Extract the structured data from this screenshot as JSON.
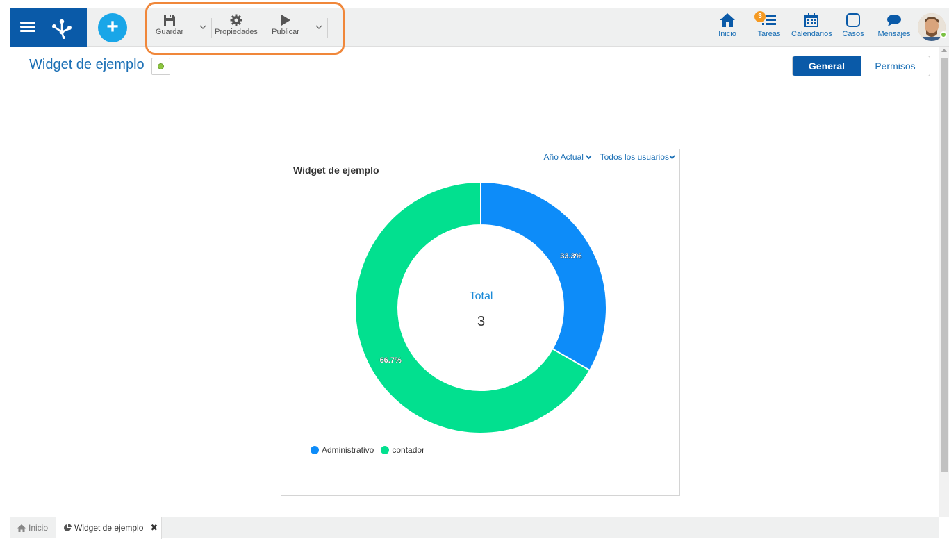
{
  "toolbar": {
    "save_label": "Guardar",
    "properties_label": "Propiedades",
    "publish_label": "Publicar"
  },
  "nav": {
    "home_label": "Inicio",
    "tasks_label": "Tareas",
    "tasks_badge": "3",
    "calendars_label": "Calendarios",
    "cases_label": "Casos",
    "messages_label": "Mensajes"
  },
  "page": {
    "title": "Widget de ejemplo"
  },
  "tabs": {
    "general": "General",
    "permissions": "Permisos"
  },
  "widget": {
    "title": "Widget de ejemplo",
    "filter_period": "Año Actual",
    "filter_users": "Todos los usuarios",
    "center_label": "Total",
    "center_value": "3"
  },
  "chart_data": {
    "type": "pie",
    "title": "Widget de ejemplo",
    "categories": [
      "Administrativo",
      "contador"
    ],
    "values": [
      33.3,
      66.7
    ],
    "labels": [
      "33.3%",
      "66.7%"
    ],
    "colors": [
      "#0d8cf9",
      "#02e08f"
    ],
    "legend": "bottom-left",
    "donut": true
  },
  "bottom_tabs": {
    "home": "Inicio",
    "widget": "Widget de ejemplo"
  },
  "colors": {
    "brand": "#0a5aa8",
    "accent": "#19a6e8",
    "highlight": "#f0873a"
  }
}
